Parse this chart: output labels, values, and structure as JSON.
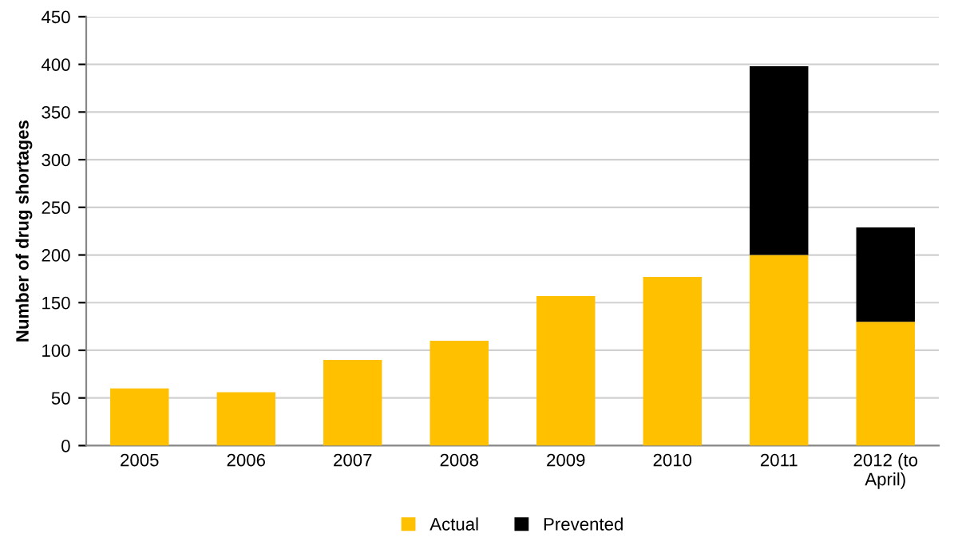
{
  "chart_data": {
    "type": "bar",
    "ylabel": "Number of drug shortages",
    "categories": [
      "2005",
      "2006",
      "2007",
      "2008",
      "2009",
      "2010",
      "2011",
      "2012 (to\nApril)"
    ],
    "series": [
      {
        "name": "Actual",
        "color": "#ffc000",
        "values": [
          60,
          56,
          90,
          110,
          157,
          177,
          200,
          130
        ]
      },
      {
        "name": "Prevented",
        "color": "#000000",
        "values": [
          null,
          null,
          null,
          null,
          null,
          null,
          198,
          99
        ]
      }
    ],
    "stacked": true,
    "ylim": [
      0,
      450
    ],
    "yticks": [
      0,
      50,
      100,
      150,
      200,
      250,
      300,
      350,
      400,
      450
    ],
    "grid": "y",
    "legend": "bottom"
  }
}
